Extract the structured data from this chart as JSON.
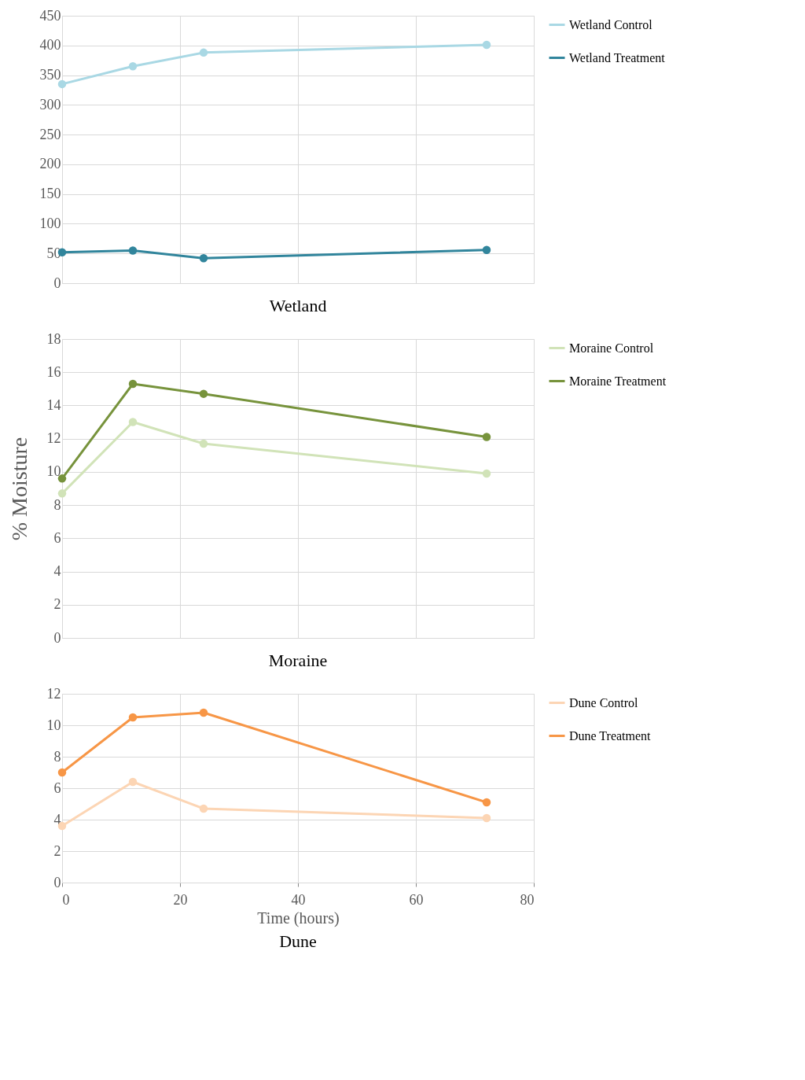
{
  "chart_data": [
    {
      "type": "line",
      "title": "Wetland",
      "x": [
        0,
        12,
        24,
        72
      ],
      "xlim": [
        0,
        80
      ],
      "xticks": [
        0,
        20,
        40,
        60,
        80
      ],
      "ylim": [
        0,
        450
      ],
      "yticks": [
        0,
        50,
        100,
        150,
        200,
        250,
        300,
        350,
        400,
        450
      ],
      "tick_labels": "y",
      "grid": true,
      "legend": "right",
      "marker": "circle",
      "line_style": "solid",
      "series": [
        {
          "name": "Wetland Control",
          "color": "#a9d8e4",
          "values": [
            335,
            365,
            388,
            401
          ]
        },
        {
          "name": "Wetland Treatment",
          "color": "#31859c",
          "values": [
            52,
            55,
            42,
            56
          ]
        }
      ]
    },
    {
      "type": "line",
      "title": "Moraine",
      "ylabel": "% Moisture",
      "x": [
        0,
        12,
        24,
        72
      ],
      "xlim": [
        0,
        80
      ],
      "xticks": [
        0,
        20,
        40,
        60,
        80
      ],
      "ylim": [
        0,
        18
      ],
      "yticks": [
        0,
        2,
        4,
        6,
        8,
        10,
        12,
        14,
        16,
        18
      ],
      "tick_labels": "y",
      "grid": true,
      "legend": "right",
      "marker": "circle",
      "line_style": "solid",
      "series": [
        {
          "name": "Moraine Control",
          "color": "#d1e3b8",
          "values": [
            8.7,
            13.0,
            11.7,
            9.9
          ]
        },
        {
          "name": "Moraine Treatment",
          "color": "#77933c",
          "values": [
            9.6,
            15.3,
            14.7,
            12.1
          ]
        }
      ]
    },
    {
      "type": "line",
      "title": "Dune",
      "xlabel": "Time (hours)",
      "x": [
        0,
        12,
        24,
        72
      ],
      "xlim": [
        0,
        80
      ],
      "xticks": [
        0,
        20,
        40,
        60,
        80
      ],
      "ylim": [
        0,
        12
      ],
      "yticks": [
        0,
        2,
        4,
        6,
        8,
        10,
        12
      ],
      "grid": true,
      "legend": "right",
      "marker": "circle",
      "line_style": "solid",
      "series": [
        {
          "name": "Dune Control",
          "color": "#fcd5b4",
          "values": [
            3.6,
            6.4,
            4.7,
            4.1
          ]
        },
        {
          "name": "Dune Treatment",
          "color": "#f79646",
          "values": [
            7.0,
            10.5,
            10.8,
            5.1
          ]
        }
      ]
    }
  ]
}
